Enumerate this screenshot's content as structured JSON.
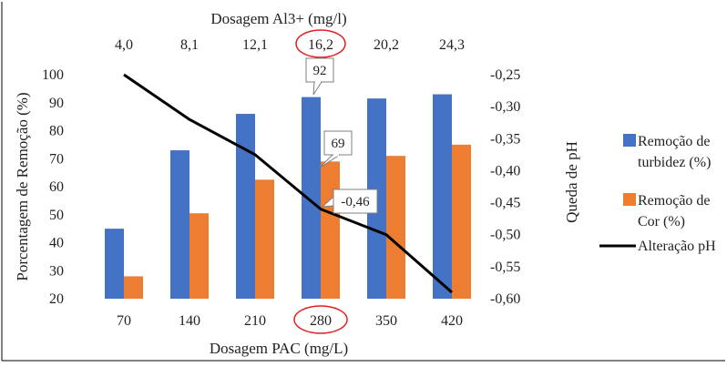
{
  "chart_data": {
    "type": "bar",
    "title": "",
    "xlabel": "Dosagem PAC (mg/L)",
    "x2label": "Dosagem Al3+ (mg/l)",
    "ylabel": "Porcentagem de Remoção (%)",
    "y2label": "Queda de pH",
    "categories": [
      "70",
      "140",
      "210",
      "280",
      "350",
      "420"
    ],
    "top_categories": [
      "4,0",
      "8,1",
      "12,1",
      "16,2",
      "20,2",
      "24,3"
    ],
    "ylim": [
      20,
      100
    ],
    "y_ticks": [
      "20",
      "30",
      "40",
      "50",
      "60",
      "70",
      "80",
      "90",
      "100"
    ],
    "y2lim": [
      -0.6,
      -0.25
    ],
    "y2_ticks": [
      "-0,60",
      "-0,55",
      "-0,50",
      "-0,45",
      "-0,40",
      "-0,35",
      "-0,30",
      "-0,25"
    ],
    "series": [
      {
        "name": "Remoção de turbidez (%)",
        "legend_lines": [
          "Remoção de",
          "turbidez (%)"
        ],
        "type": "bar",
        "axis": "left",
        "color": "#4472C4",
        "values": [
          45,
          73,
          86,
          92,
          91.5,
          93
        ]
      },
      {
        "name": "Remoção de Cor (%)",
        "legend_lines": [
          "Remoção de",
          "Cor (%)"
        ],
        "type": "bar",
        "axis": "left",
        "color": "#ED7D31",
        "values": [
          28,
          50.5,
          62.5,
          69,
          71,
          75
        ]
      },
      {
        "name": "Alteração pH",
        "legend_lines": [
          "Alteração pH"
        ],
        "type": "line",
        "axis": "right",
        "color": "#000000",
        "values": [
          -0.25,
          -0.32,
          -0.375,
          -0.46,
          -0.5,
          -0.59
        ]
      }
    ],
    "annotations": [
      {
        "text": "92",
        "series": 0,
        "index": 3
      },
      {
        "text": "69",
        "series": 1,
        "index": 3
      },
      {
        "text": "-0,46",
        "series": 2,
        "index": 3
      }
    ],
    "highlighted_index": 3,
    "highlight_color": "#E02020",
    "grid": false,
    "legend_position": "right"
  }
}
